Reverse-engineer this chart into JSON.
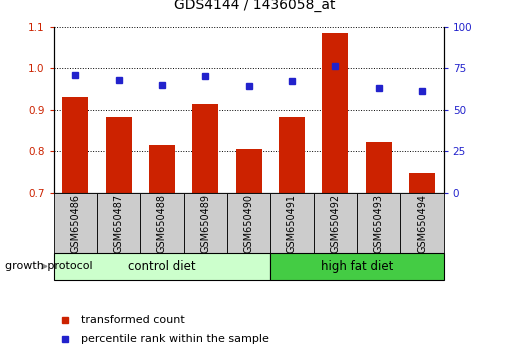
{
  "title": "GDS4144 / 1436058_at",
  "samples": [
    "GSM650486",
    "GSM650487",
    "GSM650488",
    "GSM650489",
    "GSM650490",
    "GSM650491",
    "GSM650492",
    "GSM650493",
    "GSM650494"
  ],
  "red_values": [
    0.93,
    0.882,
    0.815,
    0.915,
    0.805,
    0.882,
    1.085,
    0.822,
    0.748
  ],
  "blue_values": [
    71,
    68,
    65,
    70,
    64,
    67,
    76,
    63,
    61
  ],
  "ylim_left": [
    0.7,
    1.1
  ],
  "ylim_right": [
    0,
    100
  ],
  "yticks_left": [
    0.7,
    0.8,
    0.9,
    1.0,
    1.1
  ],
  "yticks_right": [
    0,
    25,
    50,
    75,
    100
  ],
  "groups": [
    {
      "label": "control diet",
      "start": 0,
      "end": 5,
      "color": "#ccffcc"
    },
    {
      "label": "high fat diet",
      "start": 5,
      "end": 9,
      "color": "#44cc44"
    }
  ],
  "group_label": "growth protocol",
  "red_color": "#cc2200",
  "blue_color": "#2222cc",
  "bar_width": 0.6,
  "legend_labels": [
    "transformed count",
    "percentile rank within the sample"
  ],
  "title_fontsize": 10,
  "tick_fontsize": 7.5,
  "label_fontsize": 8.5,
  "gray_color": "#cccccc"
}
